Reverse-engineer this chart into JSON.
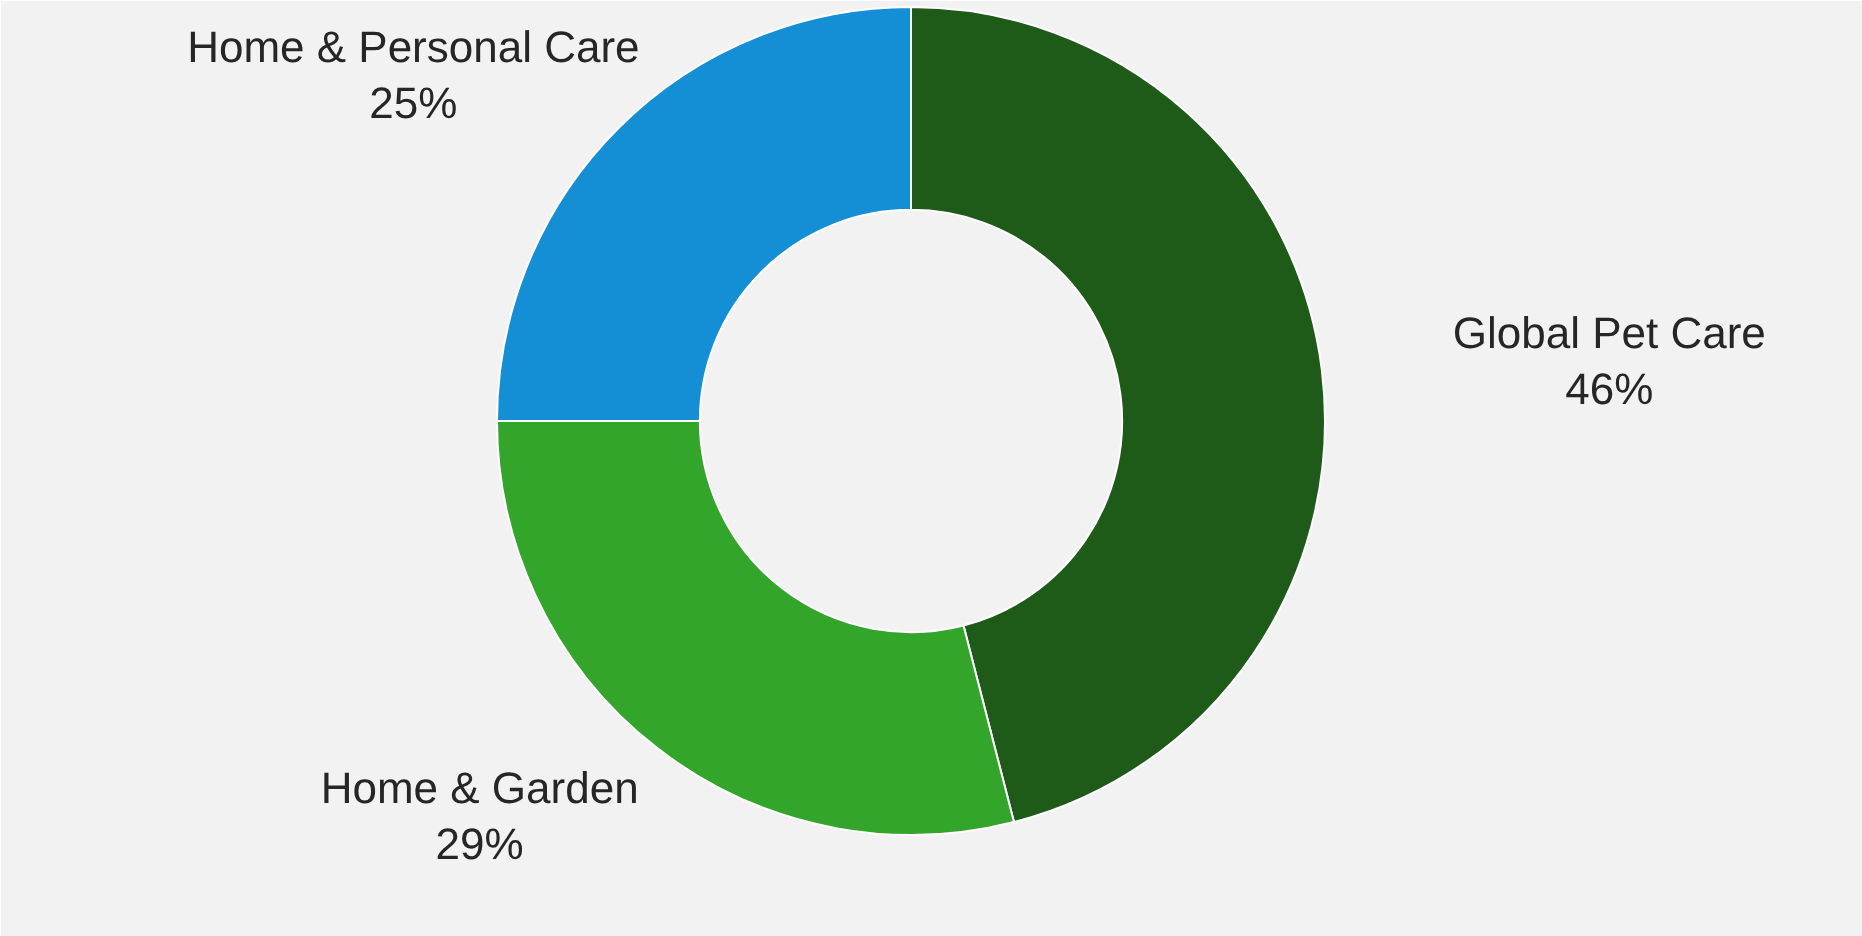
{
  "chart_data": {
    "type": "donut",
    "categories": [
      "Global Pet Care",
      "Home & Garden",
      "Home & Personal Care"
    ],
    "values": [
      46,
      29,
      25
    ],
    "colors": [
      "#1e5b18",
      "#34a52b",
      "#148fd6"
    ],
    "value_labels": [
      "46%",
      "29%",
      "25%"
    ]
  }
}
